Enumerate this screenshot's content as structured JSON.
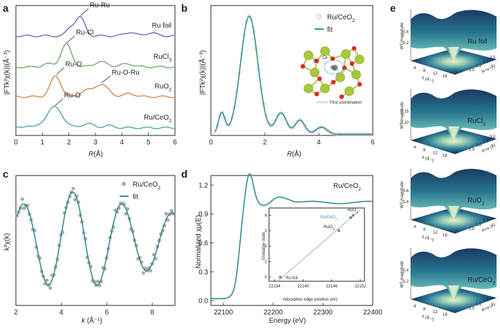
{
  "chart_data": [
    {
      "panel": "a",
      "type": "line",
      "xlabel": "R(Å)",
      "ylabel": "|FTk²χ(k)|(Å⁻³)",
      "xlim": [
        0,
        6
      ],
      "xticks": [
        "0",
        "1",
        "2",
        "3",
        "4",
        "5",
        "6"
      ],
      "series": [
        {
          "name": "Ru foil",
          "color": "#4a5aa8",
          "offset": 4,
          "peaks": [
            {
              "x": 2.42,
              "y": 0.9,
              "w": 0.18
            },
            {
              "x": 2.05,
              "y": 0.35,
              "w": 0.15
            },
            {
              "x": 4.3,
              "y": 0.18,
              "w": 0.2
            },
            {
              "x": 5.1,
              "y": 0.15,
              "w": 0.2
            }
          ],
          "annotations": [
            {
              "text": "Ru-Ru",
              "x": 2.42
            }
          ]
        },
        {
          "name": "RuCl3",
          "label_main": "RuCl",
          "label_sub": "3",
          "color": "#5f9b5a",
          "offset": 3,
          "peaks": [
            {
              "x": 1.9,
              "y": 1.1,
              "w": 0.2
            },
            {
              "x": 1.2,
              "y": 0.15,
              "w": 0.2
            },
            {
              "x": 3.2,
              "y": 0.25,
              "w": 0.25
            },
            {
              "x": 4.2,
              "y": 0.15,
              "w": 0.25
            }
          ],
          "annotations": [
            {
              "text": "Ru-Cl",
              "x": 1.9
            }
          ]
        },
        {
          "name": "RuO2",
          "label_main": "RuO",
          "label_sub": "2",
          "color": "#c97832",
          "offset": 2,
          "peaks": [
            {
              "x": 1.5,
              "y": 1.0,
              "w": 0.2
            },
            {
              "x": 3.2,
              "y": 0.6,
              "w": 0.28
            },
            {
              "x": 2.6,
              "y": 0.25,
              "w": 0.18
            },
            {
              "x": 4.3,
              "y": 0.15,
              "w": 0.2
            }
          ],
          "annotations": [
            {
              "text": "Ru-O",
              "x": 1.5
            },
            {
              "text": "Ru-O-Ru",
              "x": 3.2
            }
          ]
        },
        {
          "name": "Ru/CeO2",
          "label_main": "Ru/CeO",
          "label_sub": "2",
          "color": "#2f9aa0",
          "offset": 1,
          "peaks": [
            {
              "x": 1.45,
              "y": 1.0,
              "w": 0.3
            },
            {
              "x": 0.45,
              "y": 0.12,
              "w": 0.12
            },
            {
              "x": 2.7,
              "y": 0.2,
              "w": 0.22
            },
            {
              "x": 3.5,
              "y": 0.1,
              "w": 0.2
            }
          ],
          "annotations": [
            {
              "text": "Ru-O",
              "x": 1.45
            }
          ]
        }
      ]
    },
    {
      "panel": "b",
      "type": "line",
      "xlabel": "R(Å)",
      "ylabel": "|FTk²χ(k)|(Å⁻³)",
      "xlim": [
        0,
        6
      ],
      "ylim": [
        0,
        1.1
      ],
      "xticks": [
        "0",
        "2",
        "4",
        "6"
      ],
      "legend": [
        {
          "text": "Ru/CeO2",
          "main": "Ru/CeO",
          "sub": "2",
          "style": "open-circle",
          "color": "#bbbbbb"
        },
        {
          "text": "fit",
          "style": "line",
          "color": "#2f8f8f"
        }
      ],
      "inset_labels": {
        "ce": "Ce",
        "o": "O",
        "ru": "Ru",
        "first_coordination": "First coordination"
      },
      "peaks": [
        {
          "x": 1.42,
          "y": 1.0,
          "w": 0.32
        },
        {
          "x": 0.4,
          "y": 0.18,
          "w": 0.12
        },
        {
          "x": 2.6,
          "y": 0.18,
          "w": 0.2
        },
        {
          "x": 3.3,
          "y": 0.12,
          "w": 0.18
        },
        {
          "x": 4.1,
          "y": 0.06,
          "w": 0.2
        }
      ]
    },
    {
      "panel": "c",
      "type": "scatter+line",
      "xlabel": "k (Å⁻¹)",
      "ylabel": "k²χ(k)",
      "xlim": [
        2,
        9
      ],
      "xticks": [
        "2",
        "4",
        "6",
        "8"
      ],
      "legend": [
        {
          "text": "Ru/CeO2",
          "main": "Ru/CeO",
          "sub": "2",
          "style": "filled-circle",
          "color": "#aaaaaa"
        },
        {
          "text": "fit",
          "style": "line",
          "color": "#2f8f8f"
        }
      ],
      "fit": {
        "amplitude": 1.0,
        "period": 2.18,
        "phase": 1.25
      },
      "points_count": 90
    },
    {
      "panel": "d",
      "type": "line",
      "title": "Ru/CeO2",
      "title_main": "Ru/CeO",
      "title_sub": "2",
      "xlabel": "Energy (eV)",
      "ylabel": "Normalized χμ(E)",
      "xlim": [
        22075,
        22400
      ],
      "ylim": [
        -0.05,
        1.3
      ],
      "xticks": [
        22100,
        22200,
        22300,
        22400
      ],
      "yticks": [
        "0.0",
        "0.3",
        "0.6",
        "0.9",
        "1.2"
      ],
      "inset": {
        "type": "scatter",
        "xlabel": "Adsorption edge position (eV)",
        "ylabel": "Oxidation state",
        "xticks": [
          22134,
          22140,
          22146,
          22152
        ],
        "yticks": [
          0,
          1,
          2,
          3,
          4
        ],
        "points": [
          {
            "name": "Ru foil",
            "x": 22135.2,
            "y": 0
          },
          {
            "name": "RuCl3",
            "main": "RuCl",
            "sub": "3",
            "x": 22147.5,
            "y": 3
          },
          {
            "name": "RuO2",
            "main": "RuO",
            "sub": "2",
            "x": 22150.5,
            "y": 4
          },
          {
            "name": "Ru/CeO2",
            "main": "Ru/CeO",
            "sub": "2",
            "x": 22150.0,
            "y": 3.85,
            "color": "#2f9aa0"
          }
        ]
      }
    },
    {
      "panel": "e",
      "type": "surface-3d",
      "zlabel": "WT-magnitude",
      "xlabel": "k (Å⁻¹)",
      "ylabel": "R+α (Å)",
      "plots": [
        {
          "name": "Ru foil",
          "main": "Ru foil",
          "sub": "",
          "zticks": [
            "0.4",
            "0.2"
          ],
          "xticks": [
            "4",
            "8",
            "12",
            "16"
          ],
          "yticks": [
            "2.0",
            "2.5",
            "3.0",
            "3.5"
          ]
        },
        {
          "name": "RuCl3",
          "main": "RuCl",
          "sub": "3",
          "zticks": [
            "0.15",
            "0.10"
          ],
          "xticks": [
            "4",
            "8",
            "12",
            "16"
          ],
          "yticks": [
            "1.5",
            "2.0",
            "2.5",
            "3.0"
          ]
        },
        {
          "name": "RuO2",
          "main": "RuO",
          "sub": "2",
          "zticks": [
            "0.6",
            "0.4"
          ],
          "xticks": [
            "4",
            "8",
            "12",
            "16"
          ],
          "yticks": [
            "1.0",
            "1.5",
            "2.0"
          ]
        },
        {
          "name": "Ru/CeO2",
          "main": "Ru/CeO",
          "sub": "2",
          "zticks": [
            "0.4",
            "0.2"
          ],
          "xticks": [
            "4",
            "8",
            "12",
            "16"
          ],
          "yticks": [
            "1.0",
            "1.5",
            "2.0"
          ]
        }
      ]
    }
  ],
  "panels": {
    "a": "a",
    "b": "b",
    "c": "c",
    "d": "d",
    "e": "e"
  },
  "axis_units": {
    "r": "R",
    "r_unit": "(Å)",
    "k": "k",
    "k_unit": "(Å⁻¹)",
    "energy": "Energy (eV)"
  }
}
